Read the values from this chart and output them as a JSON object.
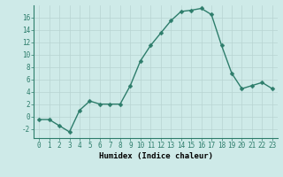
{
  "x": [
    0,
    1,
    2,
    3,
    4,
    5,
    6,
    7,
    8,
    9,
    10,
    11,
    12,
    13,
    14,
    15,
    16,
    17,
    18,
    19,
    20,
    21,
    22,
    23
  ],
  "y": [
    -0.5,
    -0.5,
    -1.5,
    -2.5,
    1,
    2.5,
    2,
    2,
    2,
    5,
    9,
    11.5,
    13.5,
    15.5,
    17,
    17.2,
    17.5,
    16.5,
    11.5,
    7,
    4.5,
    5,
    5.5,
    4.5
  ],
  "line_color": "#2d7d6b",
  "marker_color": "#2d7d6b",
  "bg_color": "#ceeae8",
  "grid_color_major": "#b8d4d2",
  "xlabel": "Humidex (Indice chaleur)",
  "ylim": [
    -3.5,
    18
  ],
  "xlim": [
    -0.5,
    23.5
  ],
  "yticks": [
    -2,
    0,
    2,
    4,
    6,
    8,
    10,
    12,
    14,
    16
  ],
  "xticks": [
    0,
    1,
    2,
    3,
    4,
    5,
    6,
    7,
    8,
    9,
    10,
    11,
    12,
    13,
    14,
    15,
    16,
    17,
    18,
    19,
    20,
    21,
    22,
    23
  ],
  "xlabel_fontsize": 6.5,
  "tick_fontsize": 5.5,
  "line_width": 1.0,
  "marker_size": 2.5
}
